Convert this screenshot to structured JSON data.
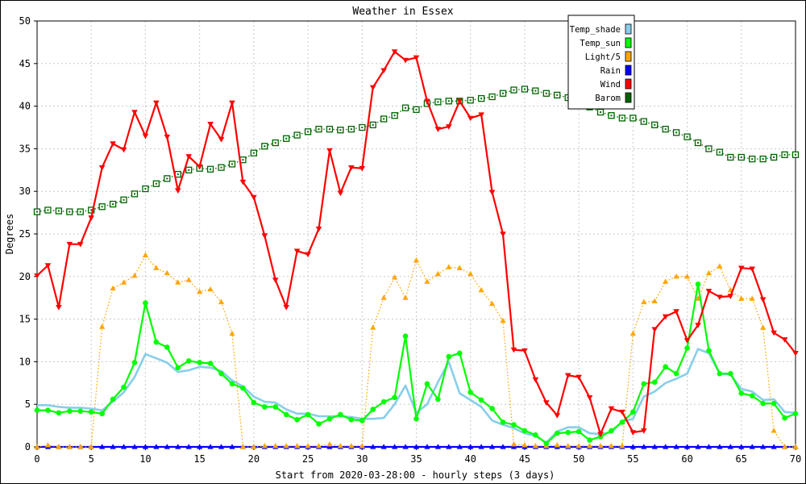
{
  "chart_data": {
    "type": "line",
    "title": "Weather in Essex",
    "xlabel": "Start from 2020-03-28:00 - hourly steps (3 days)",
    "ylabel": "Degrees",
    "xlim": [
      0,
      70
    ],
    "ylim": [
      0,
      50
    ],
    "xticks": [
      0,
      5,
      10,
      15,
      20,
      25,
      30,
      35,
      40,
      45,
      50,
      55,
      60,
      65,
      70
    ],
    "yticks": [
      0,
      5,
      10,
      15,
      20,
      25,
      30,
      35,
      40,
      45,
      50
    ],
    "grid": true,
    "legend_position": "top-right",
    "series": [
      {
        "name": "Temp_shade",
        "color": "#87CEEB",
        "style": "solid",
        "marker": "none",
        "values": [
          4.9,
          4.9,
          4.7,
          4.6,
          4.6,
          4.5,
          4.3,
          5.3,
          6.4,
          8.2,
          10.9,
          10.4,
          9.9,
          8.8,
          9.0,
          9.4,
          9.3,
          8.9,
          7.8,
          7.1,
          5.9,
          5.3,
          5.2,
          4.4,
          3.9,
          3.9,
          3.6,
          3.6,
          3.6,
          3.5,
          3.3,
          3.3,
          3.4,
          5.0,
          7.2,
          4.0,
          5.0,
          7.6,
          10.0,
          6.3,
          5.5,
          4.7,
          3.1,
          2.6,
          2.2,
          1.6,
          1.3,
          0.5,
          1.8,
          2.3,
          2.3,
          1.6,
          1.5,
          1.7,
          3.0,
          3.3,
          5.9,
          6.5,
          7.5,
          8.0,
          8.6,
          11.5,
          11.0,
          8.6,
          8.5,
          6.8,
          6.5,
          5.5,
          5.6,
          4.1,
          4.0
        ]
      },
      {
        "name": "Temp_sun",
        "color": "#00FF00",
        "style": "solid",
        "marker": "circle",
        "values": [
          4.3,
          4.3,
          4.0,
          4.2,
          4.2,
          4.1,
          3.9,
          5.6,
          7.0,
          9.9,
          16.9,
          12.3,
          11.7,
          9.3,
          10.1,
          9.9,
          9.8,
          8.6,
          7.4,
          6.9,
          5.2,
          4.7,
          4.7,
          3.8,
          3.2,
          3.8,
          2.7,
          3.3,
          3.8,
          3.2,
          3.1,
          4.4,
          5.3,
          5.8,
          13.0,
          3.3,
          7.4,
          5.6,
          10.6,
          11.0,
          6.4,
          5.5,
          4.5,
          2.9,
          2.6,
          1.9,
          1.4,
          0.4,
          1.6,
          1.7,
          1.8,
          0.8,
          1.2,
          1.9,
          2.9,
          4.1,
          7.4,
          7.6,
          9.4,
          8.6,
          11.6,
          19.1,
          11.3,
          8.6,
          8.6,
          6.3,
          6.0,
          5.1,
          5.1,
          3.4,
          3.9
        ]
      },
      {
        "name": "Light/5",
        "color": "#FFA500",
        "style": "dotted",
        "marker": "triangle-up",
        "values": [
          0,
          0.2,
          0,
          0,
          0,
          0,
          14.1,
          18.6,
          19.3,
          20.1,
          22.5,
          21.0,
          20.4,
          19.3,
          19.6,
          18.2,
          18.5,
          17.0,
          13.3,
          0,
          0,
          0.1,
          0.1,
          0.1,
          0.1,
          0.1,
          0.1,
          0.3,
          0.1,
          0.1,
          0.1,
          14.0,
          17.5,
          19.9,
          17.5,
          21.9,
          19.4,
          20.3,
          21.1,
          21.0,
          20.3,
          18.4,
          16.8,
          14.8,
          0.3,
          0.2,
          0.1,
          0.1,
          0.2,
          0.1,
          0.1,
          0.1,
          0.1,
          0.1,
          0.1,
          13.3,
          17.0,
          17.1,
          19.4,
          20.0,
          20.0,
          17.4,
          20.4,
          21.2,
          18.4,
          17.4,
          17.4,
          14.0,
          1.9,
          0,
          0
        ]
      },
      {
        "name": "Rain",
        "color": "#0000FF",
        "style": "solid",
        "marker": "triangle-up",
        "values": [
          0,
          0,
          0,
          0,
          0,
          0,
          0,
          0,
          0,
          0,
          0,
          0,
          0,
          0,
          0,
          0,
          0,
          0,
          0,
          0,
          0,
          0,
          0,
          0,
          0,
          0,
          0,
          0,
          0,
          0,
          0,
          0,
          0,
          0,
          0,
          0,
          0,
          0,
          0,
          0,
          0,
          0,
          0,
          0,
          0,
          0,
          0,
          0,
          0,
          0,
          0,
          0,
          0,
          0,
          0,
          0,
          0,
          0,
          0,
          0,
          0,
          0,
          0,
          0,
          0,
          0,
          0,
          0,
          0,
          0,
          0
        ]
      },
      {
        "name": "Wind",
        "color": "#FF0000",
        "style": "solid",
        "marker": "triangle-down",
        "values": [
          20.1,
          21.3,
          16.4,
          23.8,
          23.8,
          26.9,
          32.8,
          35.6,
          34.9,
          39.3,
          36.5,
          40.4,
          36.4,
          30.1,
          34.1,
          32.9,
          37.9,
          36.1,
          40.4,
          31.1,
          29.3,
          24.8,
          19.6,
          16.4,
          23.0,
          22.6,
          25.6,
          34.8,
          29.8,
          32.8,
          32.7,
          42.2,
          44.2,
          46.4,
          45.4,
          45.7,
          40.6,
          37.3,
          37.6,
          40.6,
          38.6,
          39.0,
          29.9,
          25.0,
          11.4,
          11.3,
          7.9,
          5.2,
          3.7,
          8.4,
          8.2,
          5.8,
          1.5,
          4.5,
          4.1,
          1.7,
          1.9,
          13.8,
          15.3,
          15.9,
          12.5,
          14.3,
          18.3,
          17.6,
          17.7,
          21.0,
          20.9,
          17.3,
          13.4,
          12.6,
          11.0
        ]
      },
      {
        "name": "Barom",
        "color": "#006400",
        "style": "dotted",
        "marker": "square",
        "values": [
          27.6,
          27.8,
          27.7,
          27.6,
          27.6,
          27.8,
          28.2,
          28.5,
          29.0,
          29.7,
          30.3,
          30.9,
          31.5,
          32.0,
          32.5,
          32.7,
          32.6,
          32.8,
          33.2,
          33.7,
          34.5,
          35.3,
          35.7,
          36.2,
          36.6,
          37.0,
          37.3,
          37.3,
          37.2,
          37.3,
          37.5,
          37.8,
          38.5,
          38.9,
          39.8,
          39.6,
          40.3,
          40.5,
          40.6,
          40.6,
          40.7,
          40.9,
          41.1,
          41.5,
          41.9,
          42.0,
          41.8,
          41.5,
          41.3,
          41.0,
          40.5,
          39.9,
          39.3,
          38.9,
          38.6,
          38.6,
          38.2,
          37.8,
          37.3,
          36.9,
          36.4,
          35.7,
          35.0,
          34.6,
          34.0,
          34.0,
          33.8,
          33.8,
          34.0,
          34.3,
          34.3
        ]
      }
    ]
  }
}
